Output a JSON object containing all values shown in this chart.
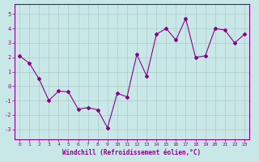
{
  "x": [
    0,
    1,
    2,
    3,
    4,
    5,
    6,
    7,
    8,
    9,
    10,
    11,
    12,
    13,
    14,
    15,
    16,
    17,
    18,
    19,
    20,
    21,
    22,
    23
  ],
  "y": [
    2.1,
    1.6,
    0.5,
    -1.0,
    -0.35,
    -0.4,
    -1.6,
    -1.5,
    -1.65,
    -2.9,
    -0.5,
    -0.75,
    2.2,
    0.7,
    3.6,
    4.0,
    3.2,
    4.7,
    2.0,
    2.1,
    4.0,
    3.9,
    3.0,
    3.6
  ],
  "line_color": "#880088",
  "marker": "D",
  "marker_size": 2,
  "xlabel": "Windchill (Refroidissement éolien,°C)",
  "xlim": [
    -0.5,
    23.5
  ],
  "ylim": [
    -3.7,
    5.7
  ],
  "yticks": [
    -3,
    -2,
    -1,
    0,
    1,
    2,
    3,
    4,
    5
  ],
  "xticks": [
    0,
    1,
    2,
    3,
    4,
    5,
    6,
    7,
    8,
    9,
    10,
    11,
    12,
    13,
    14,
    15,
    16,
    17,
    18,
    19,
    20,
    21,
    22,
    23
  ],
  "bg_color": "#c8e8e8",
  "grid_color": "#b0c8c8",
  "tick_color": "#880088",
  "label_color": "#880088",
  "spine_color": "#880088"
}
